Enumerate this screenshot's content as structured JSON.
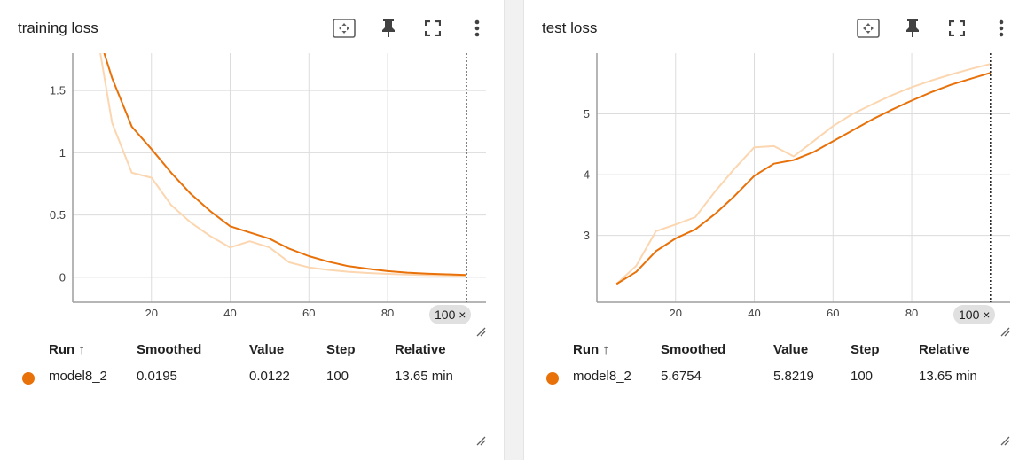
{
  "colors": {
    "smoothed": "#e8710a",
    "raw": "#fbd6b0",
    "grid": "#dcdcdc",
    "axis": "#9e9e9e"
  },
  "icons": [
    "fit-domain-icon",
    "pin-icon",
    "fullscreen-icon",
    "more-vert-icon",
    "resize-handle-icon"
  ],
  "columns": {
    "run": "Run ↑",
    "smoothed": "Smoothed",
    "value": "Value",
    "step": "Step",
    "relative": "Relative"
  },
  "cards": [
    {
      "title": "training loss",
      "step_badge": "100 ×",
      "row": {
        "run": "model8_2",
        "smoothed": "0.0195",
        "value": "0.0122",
        "step": "100",
        "relative": "13.65 min"
      }
    },
    {
      "title": "test loss",
      "step_badge": "100 ×",
      "row": {
        "run": "model8_2",
        "smoothed": "5.6754",
        "value": "5.8219",
        "step": "100",
        "relative": "13.65 min"
      }
    }
  ],
  "chart_data": [
    {
      "type": "line",
      "title": "training loss",
      "xlim": [
        0,
        105
      ],
      "ylim": [
        -0.2,
        1.8
      ],
      "xticks": [
        "20",
        "40",
        "60",
        "80"
      ],
      "yticks": [
        "0",
        "0.5",
        "1",
        "1.5"
      ],
      "grid": true,
      "series": [
        {
          "name": "model8_2",
          "kind": "raw",
          "x": [
            7,
            10,
            15,
            20,
            25,
            30,
            35,
            40,
            45,
            50,
            55,
            60,
            65,
            70,
            75,
            80,
            85,
            90,
            95,
            100
          ],
          "y": [
            1.8,
            1.24,
            0.84,
            0.8,
            0.58,
            0.44,
            0.33,
            0.24,
            0.29,
            0.24,
            0.12,
            0.08,
            0.06,
            0.045,
            0.035,
            0.028,
            0.022,
            0.018,
            0.015,
            0.0122
          ]
        },
        {
          "name": "model8_2",
          "kind": "smoothed",
          "x": [
            8,
            10,
            15,
            20,
            25,
            30,
            35,
            40,
            45,
            50,
            55,
            60,
            65,
            70,
            75,
            80,
            85,
            90,
            95,
            100
          ],
          "y": [
            1.8,
            1.6,
            1.21,
            1.03,
            0.84,
            0.67,
            0.53,
            0.41,
            0.36,
            0.31,
            0.23,
            0.17,
            0.125,
            0.09,
            0.068,
            0.05,
            0.038,
            0.03,
            0.024,
            0.0195
          ]
        }
      ],
      "marker_x": 100
    },
    {
      "type": "line",
      "title": "test loss",
      "xlim": [
        0,
        105
      ],
      "ylim": [
        1.9,
        6.0
      ],
      "xticks": [
        "20",
        "40",
        "60",
        "80"
      ],
      "yticks": [
        "3",
        "4",
        "5"
      ],
      "grid": true,
      "series": [
        {
          "name": "model8_2",
          "kind": "raw",
          "x": [
            5,
            10,
            15,
            20,
            25,
            30,
            35,
            40,
            45,
            50,
            55,
            60,
            65,
            70,
            75,
            80,
            85,
            90,
            95,
            100
          ],
          "y": [
            2.2,
            2.5,
            3.07,
            3.18,
            3.3,
            3.72,
            4.1,
            4.45,
            4.47,
            4.3,
            4.55,
            4.8,
            5.0,
            5.16,
            5.31,
            5.44,
            5.55,
            5.65,
            5.74,
            5.8219
          ]
        },
        {
          "name": "model8_2",
          "kind": "smoothed",
          "x": [
            5,
            10,
            15,
            20,
            25,
            30,
            35,
            40,
            45,
            50,
            55,
            60,
            65,
            70,
            75,
            80,
            85,
            90,
            95,
            100
          ],
          "y": [
            2.2,
            2.4,
            2.74,
            2.95,
            3.1,
            3.35,
            3.65,
            3.98,
            4.18,
            4.24,
            4.37,
            4.55,
            4.73,
            4.91,
            5.07,
            5.22,
            5.36,
            5.48,
            5.58,
            5.6754
          ]
        }
      ],
      "marker_x": 100
    }
  ]
}
